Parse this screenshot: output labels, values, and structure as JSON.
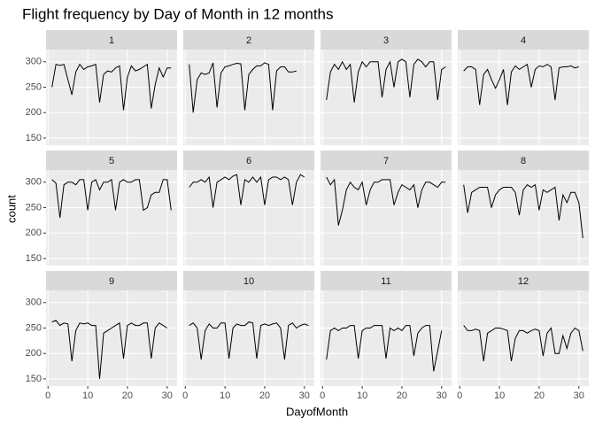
{
  "chart_data": {
    "type": "line",
    "title": "Flight frequency by Day of Month in 12 months",
    "x_label": "DayofMonth",
    "y_label": "count",
    "x": [
      1,
      2,
      3,
      4,
      5,
      6,
      7,
      8,
      9,
      10,
      11,
      12,
      13,
      14,
      15,
      16,
      17,
      18,
      19,
      20,
      21,
      22,
      23,
      24,
      25,
      26,
      27,
      28,
      29,
      30,
      31
    ],
    "xlim": [
      -0.5,
      32.5
    ],
    "xticks": [
      0,
      10,
      20,
      30
    ],
    "ylim": [
      136,
      324
    ],
    "yticks": [
      150,
      200,
      250,
      300
    ],
    "grid": true,
    "color": "#000000",
    "series": [
      {
        "name": "1",
        "values": [
          250,
          295,
          293,
          295,
          265,
          235,
          280,
          295,
          285,
          290,
          292,
          295,
          220,
          275,
          282,
          280,
          288,
          292,
          205,
          270,
          292,
          282,
          285,
          290,
          295,
          208,
          255,
          288,
          270,
          288,
          288
        ]
      },
      {
        "name": "2",
        "values": [
          295,
          200,
          265,
          278,
          275,
          278,
          298,
          210,
          278,
          290,
          292,
          295,
          297,
          296,
          205,
          275,
          285,
          292,
          292,
          298,
          295,
          205,
          282,
          290,
          290,
          280,
          280,
          282,
          null,
          null,
          null
        ]
      },
      {
        "name": "3",
        "values": [
          225,
          280,
          295,
          285,
          300,
          285,
          295,
          220,
          280,
          300,
          290,
          300,
          300,
          300,
          230,
          285,
          300,
          250,
          300,
          305,
          300,
          230,
          295,
          305,
          300,
          290,
          300,
          300,
          225,
          285,
          290
        ]
      },
      {
        "name": "4",
        "values": [
          282,
          290,
          290,
          285,
          215,
          275,
          285,
          265,
          248,
          265,
          285,
          215,
          280,
          292,
          285,
          290,
          295,
          250,
          285,
          292,
          290,
          295,
          290,
          225,
          288,
          290,
          290,
          292,
          288,
          290,
          null
        ]
      },
      {
        "name": "5",
        "values": [
          305,
          298,
          230,
          295,
          300,
          300,
          295,
          305,
          305,
          245,
          300,
          305,
          285,
          300,
          300,
          305,
          245,
          300,
          305,
          300,
          300,
          305,
          305,
          245,
          250,
          275,
          280,
          280,
          305,
          305,
          245
        ]
      },
      {
        "name": "6",
        "values": [
          290,
          300,
          300,
          305,
          300,
          310,
          250,
          300,
          305,
          310,
          305,
          312,
          315,
          255,
          305,
          300,
          310,
          300,
          310,
          255,
          305,
          310,
          310,
          305,
          310,
          305,
          255,
          300,
          315,
          310,
          null
        ]
      },
      {
        "name": "7",
        "values": [
          310,
          295,
          305,
          215,
          245,
          285,
          300,
          290,
          285,
          300,
          255,
          285,
          300,
          300,
          305,
          305,
          305,
          255,
          280,
          295,
          290,
          285,
          295,
          250,
          285,
          300,
          300,
          295,
          290,
          300,
          300
        ]
      },
      {
        "name": "8",
        "values": [
          295,
          240,
          280,
          285,
          290,
          290,
          290,
          250,
          275,
          285,
          290,
          290,
          290,
          280,
          235,
          285,
          295,
          290,
          295,
          245,
          285,
          280,
          285,
          290,
          225,
          275,
          260,
          280,
          280,
          260,
          190
        ]
      },
      {
        "name": "9",
        "values": [
          262,
          265,
          255,
          260,
          258,
          185,
          245,
          260,
          258,
          260,
          255,
          255,
          150,
          240,
          245,
          250,
          255,
          260,
          190,
          255,
          260,
          255,
          255,
          260,
          260,
          190,
          250,
          260,
          255,
          250,
          null
        ]
      },
      {
        "name": "10",
        "values": [
          255,
          260,
          250,
          188,
          245,
          258,
          250,
          250,
          260,
          260,
          190,
          250,
          258,
          255,
          255,
          262,
          260,
          190,
          255,
          258,
          255,
          258,
          260,
          250,
          188,
          255,
          260,
          250,
          255,
          258,
          255
        ]
      },
      {
        "name": "11",
        "values": [
          188,
          245,
          250,
          245,
          250,
          250,
          255,
          255,
          190,
          245,
          250,
          250,
          255,
          255,
          255,
          190,
          250,
          245,
          250,
          245,
          255,
          255,
          195,
          240,
          250,
          255,
          255,
          165,
          205,
          245,
          null
        ]
      },
      {
        "name": "12",
        "values": [
          255,
          245,
          245,
          248,
          245,
          185,
          240,
          245,
          250,
          250,
          248,
          245,
          185,
          230,
          245,
          245,
          240,
          245,
          248,
          245,
          195,
          240,
          250,
          200,
          200,
          235,
          210,
          240,
          250,
          245,
          205
        ]
      }
    ]
  }
}
